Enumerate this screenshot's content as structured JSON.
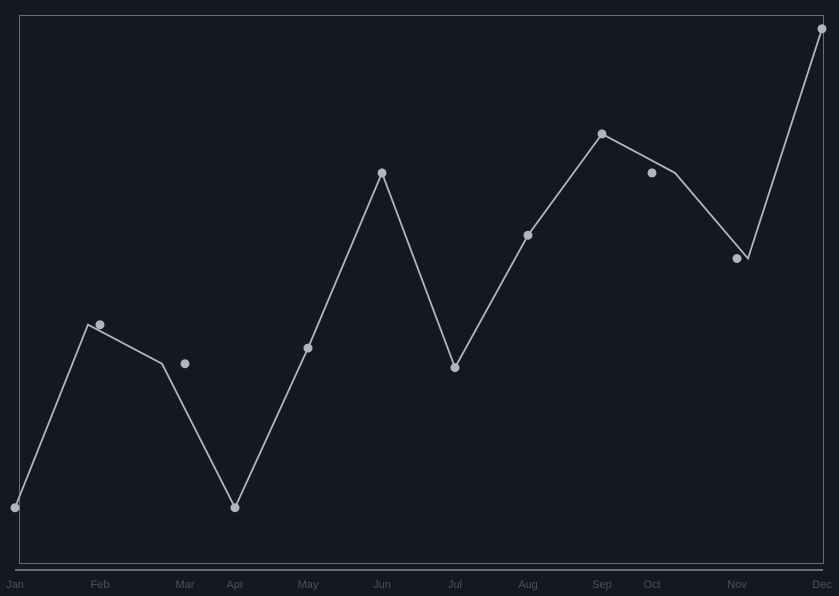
{
  "chart_data": {
    "type": "line",
    "title": "",
    "xlabel": "",
    "ylabel": "",
    "categories": [
      "Jan",
      "Feb",
      "Mar",
      "Apr",
      "May",
      "Jun",
      "Jul",
      "Aug",
      "Sep",
      "Oct",
      "Nov",
      "Dec"
    ],
    "series": [
      {
        "values": [
          0.7,
          5.4,
          4.4,
          0.7,
          4.8,
          9.3,
          4.3,
          7.7,
          10.3,
          9.3,
          7.1,
          13.0
        ],
        "points": [
          {
            "x": "Jan",
            "y": 0.7
          },
          {
            "x": "Feb",
            "y": 5.4
          },
          {
            "x": "Mar",
            "y": 4.4
          },
          {
            "x": "Apr",
            "y": 0.7
          },
          {
            "x": "May",
            "y": 4.8
          },
          {
            "x": "Jun",
            "y": 9.3
          },
          {
            "x": "Jul",
            "y": 4.3
          },
          {
            "x": "Aug",
            "y": 7.7
          },
          {
            "x": "Sep",
            "y": 10.3
          },
          {
            "x": "Oct",
            "y": 9.3
          },
          {
            "x": "Nov",
            "y": 7.1
          },
          {
            "x": "Dec",
            "y": 13.0
          }
        ]
      }
    ],
    "ylim": [
      0,
      13.2
    ],
    "grid": false,
    "legend": "none",
    "colors": {
      "background": "#161821",
      "line": "#b4b5bb",
      "marker": "#b4b5bb",
      "frame": "#6b6c72",
      "tick_label": "#4f5058"
    }
  }
}
